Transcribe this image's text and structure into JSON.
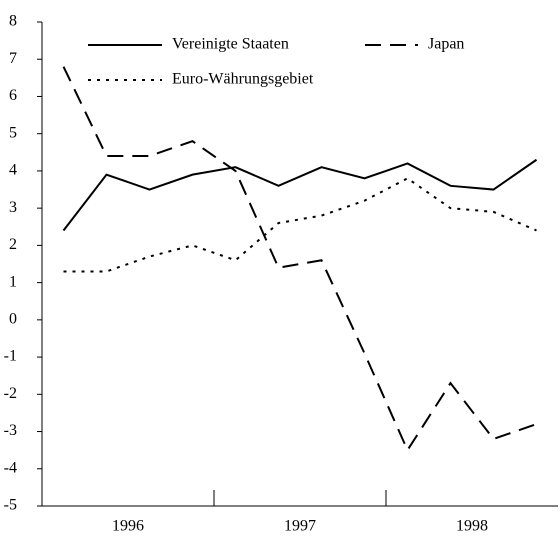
{
  "chart_data": {
    "type": "line",
    "categories": [
      null,
      null,
      null,
      null,
      null,
      null,
      null,
      null,
      null,
      null,
      null,
      null
    ],
    "x_groups": [
      "1996",
      "1997",
      "1998"
    ],
    "ylim": [
      -5,
      8
    ],
    "yticks": [
      -5,
      -4,
      -3,
      -2,
      -1,
      0,
      1,
      2,
      3,
      4,
      5,
      6,
      7,
      8
    ],
    "series": [
      {
        "name": "Vereinigte Staaten",
        "color": "#000000",
        "dash": "solid",
        "values": [
          2.4,
          3.9,
          3.5,
          3.9,
          4.1,
          3.6,
          4.1,
          3.8,
          4.2,
          3.6,
          3.5,
          4.3
        ]
      },
      {
        "name": "Japan",
        "color": "#000000",
        "dash": "dashed",
        "values": [
          6.8,
          4.4,
          4.4,
          4.8,
          4.0,
          1.4,
          1.6,
          -0.9,
          -3.5,
          -1.7,
          -3.2,
          -2.8
        ]
      },
      {
        "name": "Euro-Währungsgebiet",
        "color": "#000000",
        "dash": "dotted",
        "values": [
          1.3,
          1.3,
          1.7,
          2.0,
          1.6,
          2.6,
          2.8,
          3.2,
          3.8,
          3.0,
          2.9,
          2.4
        ]
      }
    ]
  }
}
